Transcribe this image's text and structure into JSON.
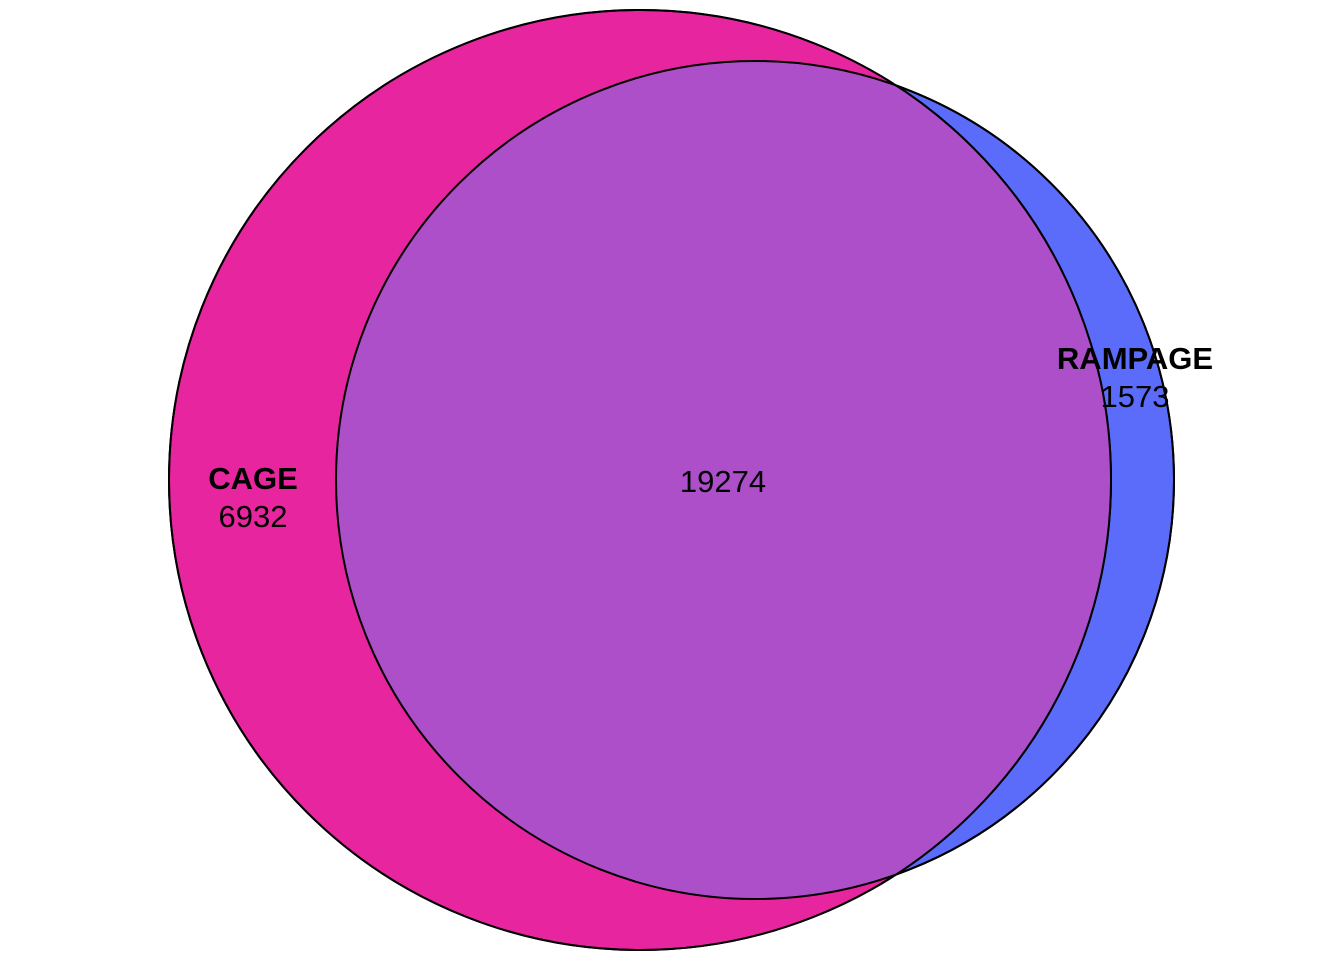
{
  "venn": {
    "sets": [
      {
        "name": "CAGE",
        "only_count": "6932",
        "color": "#E7259F"
      },
      {
        "name": "RAMPAGE",
        "only_count": "1573",
        "color": "#5A6CF9"
      }
    ],
    "intersection": {
      "count": "19274",
      "color": "#AC4FC8"
    },
    "outline_color": "#000000"
  }
}
